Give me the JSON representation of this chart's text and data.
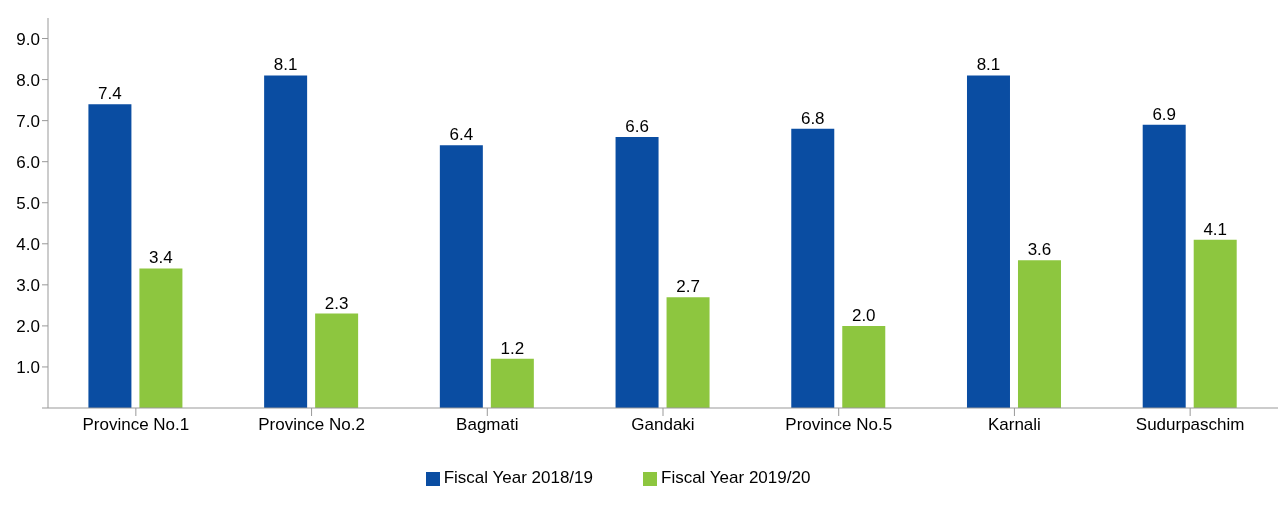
{
  "chart_data": {
    "type": "bar",
    "categories": [
      "Province No.1",
      "Province No.2",
      "Bagmati",
      "Gandaki",
      "Province No.5",
      "Karnali",
      "Sudurpaschim"
    ],
    "series": [
      {
        "name": "Fiscal Year 2018/19",
        "color": "#0a4da2",
        "values": [
          7.4,
          8.1,
          6.4,
          6.6,
          6.8,
          8.1,
          6.9
        ],
        "value_labels": [
          "7.4",
          "8.1",
          "6.4",
          "6.6",
          "6.8",
          "8.1",
          "6.9"
        ]
      },
      {
        "name": "Fiscal Year 2019/20",
        "color": "#8dc63f",
        "values": [
          3.4,
          2.3,
          1.2,
          2.7,
          2.0,
          3.6,
          4.1
        ],
        "value_labels": [
          "3.4",
          "2.3",
          "1.2",
          "2.7",
          "2.0",
          "3.6",
          "4.1"
        ]
      }
    ],
    "ylim": [
      0,
      9.5
    ],
    "yticks": [
      {
        "value": 0,
        "label": null
      },
      {
        "value": 1,
        "label": "1.0"
      },
      {
        "value": 2,
        "label": "2.0"
      },
      {
        "value": 3,
        "label": "3.0"
      },
      {
        "value": 4,
        "label": "4.0"
      },
      {
        "value": 5,
        "label": "5.0"
      },
      {
        "value": 6,
        "label": "6.0"
      },
      {
        "value": 7,
        "label": "7.0"
      },
      {
        "value": 8,
        "label": "8.0"
      },
      {
        "value": 9,
        "label": "9.0"
      }
    ],
    "grid": false,
    "legend": "bottom"
  }
}
